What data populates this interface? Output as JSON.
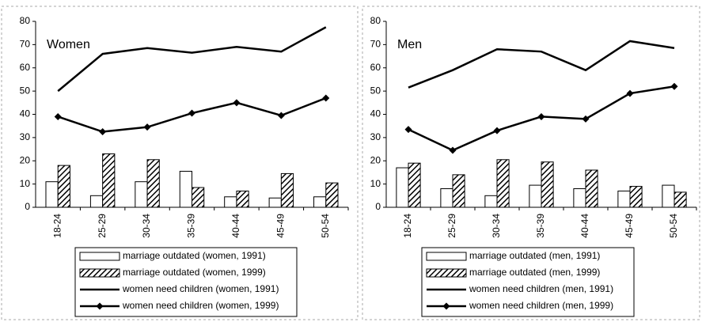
{
  "chart_data": [
    {
      "type": "combo",
      "label": "Women",
      "categories": [
        "18-24",
        "25-29",
        "30-34",
        "35-39",
        "40-44",
        "45-49",
        "50-54"
      ],
      "ylim": [
        0,
        80
      ],
      "yticks": [
        0,
        10,
        20,
        30,
        40,
        50,
        60,
        70,
        80
      ],
      "series": [
        {
          "name": "marriage outdated (women, 1991)",
          "type": "bar",
          "pattern": "none",
          "color": "#000000",
          "values": [
            11,
            5,
            11,
            15.5,
            4.5,
            4,
            4.5
          ]
        },
        {
          "name": "marriage outdated (women, 1999)",
          "type": "bar",
          "pattern": "hatch",
          "color": "#000000",
          "values": [
            18,
            23,
            20.5,
            8.5,
            7,
            14.5,
            10.5
          ]
        },
        {
          "name": "women need children (women, 1991)",
          "type": "line",
          "marker": "none",
          "color": "#000000",
          "values": [
            50,
            66,
            68.5,
            66.5,
            69,
            67,
            77.5
          ]
        },
        {
          "name": "women need children (women, 1999)",
          "type": "line",
          "marker": "diamond",
          "color": "#000000",
          "values": [
            39,
            32.5,
            34.5,
            40.5,
            45,
            39.5,
            47
          ]
        }
      ]
    },
    {
      "type": "combo",
      "label": "Men",
      "categories": [
        "18-24",
        "25-29",
        "30-34",
        "35-39",
        "40-44",
        "45-49",
        "50-54"
      ],
      "ylim": [
        0,
        80
      ],
      "yticks": [
        0,
        10,
        20,
        30,
        40,
        50,
        60,
        70,
        80
      ],
      "series": [
        {
          "name": "marriage outdated (men, 1991)",
          "type": "bar",
          "pattern": "none",
          "color": "#000000",
          "values": [
            17,
            8,
            5,
            9.5,
            8,
            7,
            9.5
          ]
        },
        {
          "name": "marriage outdated (men, 1999)",
          "type": "bar",
          "pattern": "hatch",
          "color": "#000000",
          "values": [
            19,
            14,
            20.5,
            19.5,
            16,
            9,
            6.5
          ]
        },
        {
          "name": "women need children (men, 1991)",
          "type": "line",
          "marker": "none",
          "color": "#000000",
          "values": [
            51.5,
            59,
            68,
            67,
            59,
            71.5,
            68.5
          ]
        },
        {
          "name": "women need children (men, 1999)",
          "type": "line",
          "marker": "diamond",
          "color": "#000000",
          "values": [
            33.5,
            24.5,
            33,
            39,
            38,
            49,
            52
          ]
        }
      ]
    }
  ]
}
